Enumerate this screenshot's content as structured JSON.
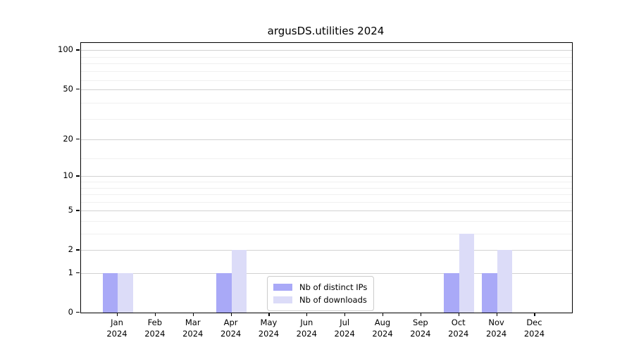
{
  "title": "argusDS.utilities 2024",
  "chart_data": {
    "type": "bar",
    "title": "argusDS.utilities 2024",
    "categories": [
      "Jan",
      "Feb",
      "Mar",
      "Apr",
      "May",
      "Jun",
      "Jul",
      "Aug",
      "Sep",
      "Oct",
      "Nov",
      "Dec"
    ],
    "category_year": "2024",
    "series": [
      {
        "name": "Nb of distinct IPs",
        "color": "#a9a9f7",
        "values": [
          1,
          0,
          0,
          1,
          0,
          0,
          0,
          0,
          0,
          1,
          1,
          0
        ]
      },
      {
        "name": "Nb of downloads",
        "color": "#dcdcf8",
        "values": [
          1,
          0,
          0,
          2,
          0,
          0,
          0,
          0,
          0,
          3,
          2,
          0
        ]
      }
    ],
    "xlabel": "",
    "ylabel": "",
    "y_scale": "log(value+1)",
    "ylim": [
      0,
      114
    ],
    "y_major_ticks": [
      {
        "value": 100,
        "label": "100"
      },
      {
        "value": 50,
        "label": "50"
      },
      {
        "value": 20,
        "label": "20"
      },
      {
        "value": 10,
        "label": "10"
      },
      {
        "value": 5,
        "label": "5"
      },
      {
        "value": 2,
        "label": "2"
      },
      {
        "value": 1,
        "label": "1"
      },
      {
        "value": 0,
        "label": "0"
      }
    ],
    "y_minor_gridlines": [
      3,
      4,
      6,
      7,
      8,
      9,
      14,
      29,
      39,
      59,
      69,
      79,
      89
    ],
    "grid": true,
    "legend_position": "lower center",
    "grid_major_color": "#d2d2d2",
    "grid_minor_color": "#f0f0f0"
  }
}
